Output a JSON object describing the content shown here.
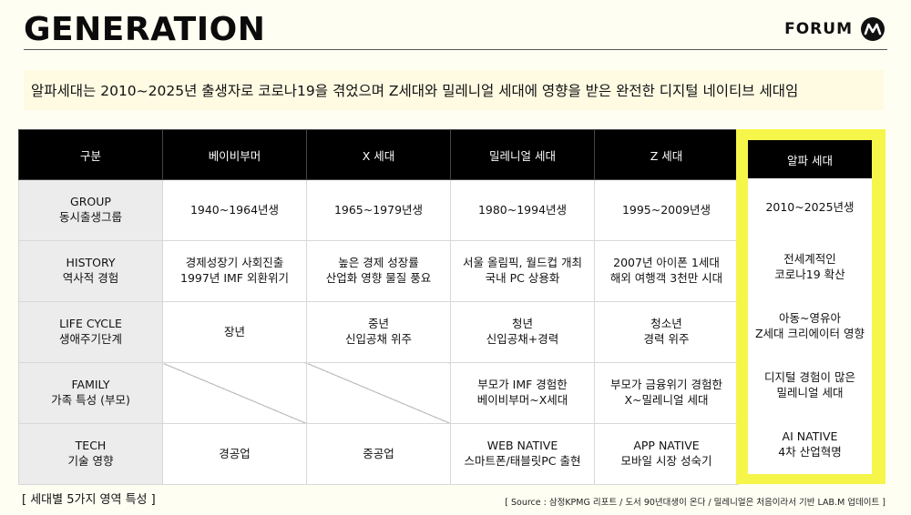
{
  "header": {
    "title": "GENERATION",
    "brand_text": "FORUM",
    "logo_icon": "forum-m-logo-icon"
  },
  "subtitle": "알파세대는 2010~2025년 출생자로 코로나19을 겪었으며 Z세대와 밀레니얼 세대에 영향을 받은 완전한 디지털 네이티브 세대임",
  "table": {
    "header_label": "구분",
    "columns": [
      "베이비부머",
      "X 세대",
      "밀레니얼 세대",
      "Z 세대"
    ],
    "rows": [
      {
        "label": [
          "GROUP",
          "동시출생그룹"
        ],
        "cells": [
          [
            "1940~1964년생"
          ],
          [
            "1965~1979년생"
          ],
          [
            "1980~1994년생"
          ],
          [
            "1995~2009년생"
          ]
        ]
      },
      {
        "label": [
          "HISTORY",
          "역사적 경험"
        ],
        "cells": [
          [
            "경제성장기 사회진출",
            "1997년 IMF 외환위기"
          ],
          [
            "높은 경제 성장률",
            "산업화 영향 물질 풍요"
          ],
          [
            "서울 올림픽, 월드컵 개최",
            "국내 PC 상용화"
          ],
          [
            "2007년 아이폰 1세대",
            "해외 여행객 3천만 시대"
          ]
        ]
      },
      {
        "label": [
          "LIFE CYCLE",
          "생애주기단계"
        ],
        "cells": [
          [
            "장년"
          ],
          [
            "중년",
            "신입공채 위주"
          ],
          [
            "청년",
            "신입공채+경력"
          ],
          [
            "청소년",
            "경력 위주"
          ]
        ]
      },
      {
        "label": [
          "FAMILY",
          "가족 특성 (부모)"
        ],
        "cells": [
          [],
          [],
          [
            "부모가 IMF 경험한",
            "베이비부머~X세대"
          ],
          [
            "부모가 금융위기 경험한",
            "X~밀레니얼 세대"
          ]
        ]
      },
      {
        "label": [
          "TECH",
          "기술 영향"
        ],
        "cells": [
          [
            "경공업"
          ],
          [
            "중공업"
          ],
          [
            "WEB NATIVE",
            "스마트폰/태블릿PC 출현"
          ],
          [
            "APP NATIVE",
            "모바일 시장 성숙기"
          ]
        ]
      }
    ]
  },
  "alpha": {
    "header": "알파 세대",
    "cells": [
      [
        "2010~2025년생"
      ],
      [
        "전세계적인",
        "코로나19 확산"
      ],
      [
        "아동~영유아",
        "Z세대 크리에이터 영향"
      ],
      [
        "디지털 경험이 많은",
        "밀레니얼 세대"
      ],
      [
        "AI NATIVE",
        "4차 산업혁명"
      ]
    ],
    "highlight_color": "#f6f54a"
  },
  "caption": "[ 세대별 5가지 영역 특성 ]",
  "source": "[ Source : 삼정KPMG 리포트 / 도서 90년대생이 온다 / 밀레니얼은 처음이라서 기반 LAB.M 업데이트 ]"
}
